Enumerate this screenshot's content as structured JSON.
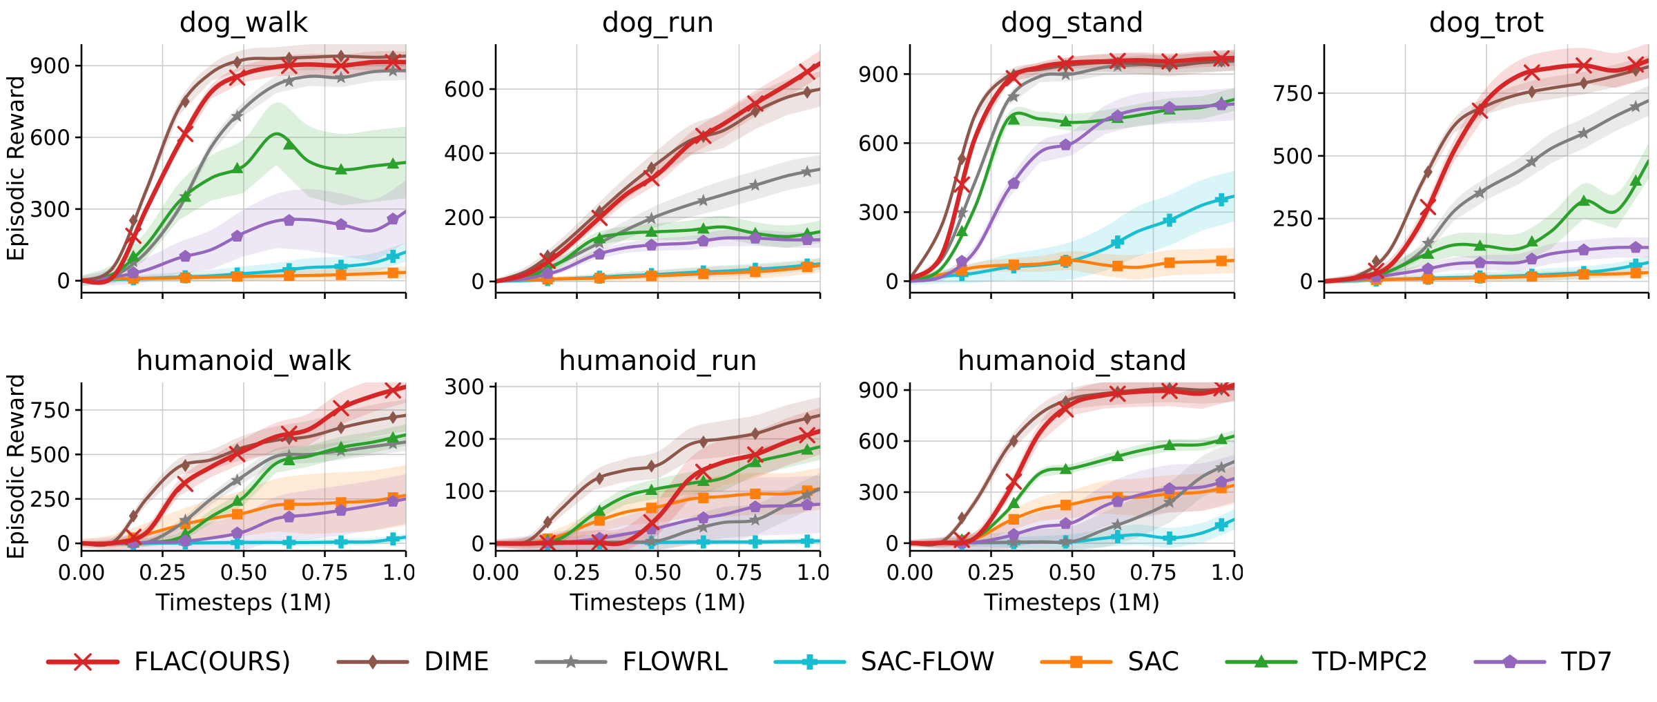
{
  "figure": {
    "ylabel": "Episodic Reward",
    "xlabel": "Timesteps (1M)",
    "x": [
      0,
      0.1,
      0.2,
      0.3,
      0.4,
      0.5,
      0.6,
      0.7,
      0.8,
      0.9,
      1.0
    ],
    "xticks": [
      0,
      0.25,
      0.5,
      0.75,
      1.0
    ],
    "xtick_labels": [
      "0.00",
      "0.25",
      "0.50",
      "0.75",
      "1.00"
    ],
    "marker_x": [
      0.16,
      0.32,
      0.48,
      0.64,
      0.8,
      0.96
    ],
    "grid_color": "#cccccc",
    "spine_color": "#000000"
  },
  "algorithms": [
    {
      "name": "FLAC(OURS)",
      "color": "#d62728",
      "marker": "x",
      "lw": 6.5
    },
    {
      "name": "DIME",
      "color": "#8c564b",
      "marker": "D",
      "lw": 4.5
    },
    {
      "name": "FLOWRL",
      "color": "#7f7f7f",
      "marker": "*",
      "lw": 4.5
    },
    {
      "name": "SAC-FLOW",
      "color": "#17becf",
      "marker": "P",
      "lw": 4.5
    },
    {
      "name": "SAC",
      "color": "#ff7f0e",
      "marker": "s",
      "lw": 4.5
    },
    {
      "name": "TD-MPC2",
      "color": "#2ca02c",
      "marker": "^",
      "lw": 4.5
    },
    {
      "name": "TD7",
      "color": "#9467bd",
      "marker": "p",
      "lw": 4.5
    }
  ],
  "chart_data": [
    {
      "type": "line",
      "title": "dog_walk",
      "ylabel": "Episodic Reward",
      "ylim": [
        -50,
        990
      ],
      "yticks": [
        0,
        300,
        600,
        900
      ],
      "series": [
        {
          "name": "SAC-FLOW",
          "values": [
            0,
            5,
            10,
            15,
            20,
            30,
            40,
            55,
            60,
            75,
            120
          ],
          "band": 40
        },
        {
          "name": "SAC",
          "values": [
            5,
            8,
            10,
            12,
            15,
            18,
            20,
            22,
            25,
            30,
            35
          ],
          "band": 25
        },
        {
          "name": "FLOWRL",
          "values": [
            0,
            20,
            120,
            300,
            560,
            720,
            820,
            855,
            850,
            875,
            880
          ],
          "band": 40
        },
        {
          "name": "TD-MPC2",
          "values": [
            0,
            30,
            150,
            330,
            430,
            480,
            615,
            500,
            465,
            480,
            495
          ],
          "band": 150
        },
        {
          "name": "TD7",
          "values": [
            0,
            15,
            45,
            95,
            130,
            200,
            250,
            255,
            235,
            210,
            290
          ],
          "band": 130
        },
        {
          "name": "DIME",
          "values": [
            0,
            60,
            380,
            720,
            870,
            925,
            930,
            935,
            940,
            935,
            940
          ],
          "band": 55
        },
        {
          "name": "FLAC(OURS)",
          "values": [
            0,
            20,
            300,
            570,
            790,
            865,
            895,
            905,
            900,
            915,
            915
          ],
          "band": 45
        }
      ]
    },
    {
      "type": "line",
      "title": "dog_run",
      "ylabel": "",
      "ylim": [
        -35,
        740
      ],
      "yticks": [
        0,
        200,
        400,
        600
      ],
      "series": [
        {
          "name": "SAC-FLOW",
          "values": [
            0,
            3,
            8,
            12,
            18,
            22,
            28,
            32,
            38,
            45,
            55
          ],
          "band": 18
        },
        {
          "name": "SAC",
          "values": [
            3,
            5,
            8,
            10,
            14,
            18,
            22,
            26,
            30,
            38,
            50
          ],
          "band": 22
        },
        {
          "name": "FLOWRL",
          "values": [
            0,
            20,
            60,
            110,
            160,
            205,
            240,
            270,
            300,
            330,
            350
          ],
          "band": 45
        },
        {
          "name": "TD-MPC2",
          "values": [
            0,
            15,
            60,
            130,
            150,
            155,
            160,
            170,
            150,
            140,
            155
          ],
          "band": 35
        },
        {
          "name": "TD7",
          "values": [
            0,
            10,
            35,
            80,
            105,
            115,
            120,
            135,
            135,
            130,
            130
          ],
          "band": 25
        },
        {
          "name": "DIME",
          "values": [
            0,
            35,
            110,
            200,
            290,
            370,
            440,
            470,
            530,
            575,
            600
          ],
          "band": 55
        },
        {
          "name": "FLAC(OURS)",
          "values": [
            0,
            25,
            90,
            180,
            270,
            335,
            430,
            490,
            555,
            615,
            680
          ],
          "band": 40
        }
      ]
    },
    {
      "type": "line",
      "title": "dog_stand",
      "ylabel": "",
      "ylim": [
        -50,
        1030
      ],
      "yticks": [
        0,
        300,
        600,
        900
      ],
      "series": [
        {
          "name": "SAC-FLOW",
          "values": [
            0,
            20,
            35,
            60,
            70,
            90,
            140,
            215,
            265,
            330,
            370
          ],
          "band": 110
        },
        {
          "name": "SAC",
          "values": [
            15,
            30,
            60,
            70,
            75,
            90,
            70,
            60,
            80,
            85,
            90
          ],
          "band": 55
        },
        {
          "name": "FLOWRL",
          "values": [
            10,
            100,
            430,
            780,
            890,
            900,
            930,
            940,
            945,
            950,
            955
          ],
          "band": 40
        },
        {
          "name": "TD-MPC2",
          "values": [
            0,
            60,
            320,
            700,
            705,
            690,
            700,
            720,
            745,
            755,
            790
          ],
          "band": 50
        },
        {
          "name": "TD7",
          "values": [
            0,
            20,
            130,
            390,
            560,
            600,
            700,
            745,
            755,
            760,
            770
          ],
          "band": 70
        },
        {
          "name": "DIME",
          "values": [
            10,
            250,
            720,
            890,
            920,
            940,
            950,
            945,
            935,
            950,
            960
          ],
          "band": 45
        },
        {
          "name": "FLAC(OURS)",
          "values": [
            10,
            120,
            620,
            870,
            930,
            950,
            955,
            960,
            955,
            965,
            970
          ],
          "band": 35
        }
      ]
    },
    {
      "type": "line",
      "title": "dog_trot",
      "ylabel": "",
      "ylim": [
        -45,
        945
      ],
      "yticks": [
        0,
        250,
        500,
        750
      ],
      "series": [
        {
          "name": "SAC-FLOW",
          "values": [
            0,
            3,
            8,
            12,
            15,
            18,
            22,
            28,
            35,
            50,
            75
          ],
          "band": 25
        },
        {
          "name": "SAC",
          "values": [
            3,
            5,
            8,
            10,
            12,
            15,
            18,
            22,
            28,
            30,
            35
          ],
          "band": 18
        },
        {
          "name": "FLOWRL",
          "values": [
            0,
            10,
            40,
            120,
            280,
            370,
            440,
            530,
            590,
            660,
            720
          ],
          "band": 60
        },
        {
          "name": "TD-MPC2",
          "values": [
            0,
            10,
            40,
            100,
            145,
            140,
            130,
            200,
            320,
            280,
            480
          ],
          "band": 70
        },
        {
          "name": "TD7",
          "values": [
            0,
            8,
            25,
            45,
            70,
            75,
            75,
            110,
            125,
            135,
            135
          ],
          "band": 40
        },
        {
          "name": "DIME",
          "values": [
            0,
            20,
            120,
            390,
            620,
            700,
            745,
            770,
            790,
            820,
            855
          ],
          "band": 45
        },
        {
          "name": "FLAC(OURS)",
          "values": [
            0,
            15,
            60,
            240,
            520,
            720,
            820,
            850,
            860,
            840,
            880
          ],
          "band": 70
        }
      ]
    },
    {
      "type": "line",
      "title": "humanoid_walk",
      "ylabel": "Episodic Reward",
      "ylim": [
        -42,
        905
      ],
      "yticks": [
        0,
        250,
        500,
        750
      ],
      "series": [
        {
          "name": "SAC-FLOW",
          "values": [
            0,
            0,
            0,
            2,
            3,
            5,
            5,
            5,
            8,
            10,
            35
          ],
          "band": 20
        },
        {
          "name": "SAC",
          "values": [
            0,
            5,
            50,
            100,
            140,
            170,
            215,
            220,
            230,
            240,
            270
          ],
          "band": 170
        },
        {
          "name": "FLOWRL",
          "values": [
            0,
            0,
            5,
            100,
            250,
            380,
            490,
            500,
            520,
            545,
            570
          ],
          "band": 50
        },
        {
          "name": "TD-MPC2",
          "values": [
            0,
            0,
            5,
            30,
            150,
            260,
            450,
            490,
            540,
            570,
            610
          ],
          "band": 60
        },
        {
          "name": "TD7",
          "values": [
            0,
            0,
            5,
            10,
            30,
            65,
            140,
            160,
            185,
            215,
            250
          ],
          "band": 140
        },
        {
          "name": "DIME",
          "values": [
            0,
            10,
            250,
            430,
            470,
            540,
            580,
            600,
            650,
            690,
            720
          ],
          "band": 90
        },
        {
          "name": "FLAC(OURS)",
          "values": [
            0,
            2,
            60,
            310,
            430,
            520,
            600,
            640,
            760,
            830,
            880
          ],
          "band": 90
        }
      ]
    },
    {
      "type": "line",
      "title": "humanoid_run",
      "ylabel": "",
      "ylim": [
        -14,
        308
      ],
      "yticks": [
        0,
        100,
        200,
        300
      ],
      "series": [
        {
          "name": "SAC-FLOW",
          "values": [
            0,
            0,
            0,
            1,
            2,
            2,
            3,
            3,
            3,
            4,
            5
          ],
          "band": 5
        },
        {
          "name": "SAC",
          "values": [
            0,
            0,
            15,
            40,
            60,
            70,
            85,
            90,
            95,
            95,
            105
          ],
          "band": 40
        },
        {
          "name": "FLOWRL",
          "values": [
            0,
            0,
            0,
            2,
            3,
            5,
            25,
            40,
            45,
            75,
            105
          ],
          "band": 30
        },
        {
          "name": "TD-MPC2",
          "values": [
            0,
            0,
            10,
            55,
            90,
            105,
            115,
            125,
            155,
            170,
            185
          ],
          "band": 25
        },
        {
          "name": "TD7",
          "values": [
            0,
            0,
            2,
            8,
            18,
            30,
            45,
            55,
            70,
            72,
            75
          ],
          "band": 55
        },
        {
          "name": "DIME",
          "values": [
            0,
            5,
            65,
            120,
            140,
            150,
            190,
            200,
            210,
            230,
            245
          ],
          "band": 35
        },
        {
          "name": "FLAC(OURS)",
          "values": [
            0,
            0,
            2,
            2,
            3,
            50,
            125,
            155,
            170,
            195,
            215
          ],
          "band": 45
        }
      ]
    },
    {
      "type": "line",
      "title": "humanoid_stand",
      "ylabel": "",
      "ylim": [
        -45,
        945
      ],
      "yticks": [
        0,
        300,
        600,
        900
      ],
      "series": [
        {
          "name": "SAC-FLOW",
          "values": [
            0,
            0,
            2,
            3,
            5,
            8,
            30,
            50,
            30,
            60,
            140
          ],
          "band": 60
        },
        {
          "name": "SAC",
          "values": [
            0,
            3,
            25,
            125,
            200,
            230,
            270,
            270,
            290,
            300,
            340
          ],
          "band": 110
        },
        {
          "name": "FLOWRL",
          "values": [
            0,
            0,
            3,
            5,
            8,
            10,
            80,
            150,
            240,
            390,
            480
          ],
          "band": 120
        },
        {
          "name": "TD-MPC2",
          "values": [
            0,
            5,
            30,
            190,
            410,
            440,
            490,
            540,
            575,
            580,
            630
          ],
          "band": 35
        },
        {
          "name": "TD7",
          "values": [
            0,
            0,
            5,
            40,
            95,
            120,
            220,
            280,
            320,
            330,
            380
          ],
          "band": 140
        },
        {
          "name": "DIME",
          "values": [
            0,
            10,
            240,
            560,
            760,
            850,
            880,
            900,
            910,
            900,
            910
          ],
          "band": 80
        },
        {
          "name": "FLAC(OURS)",
          "values": [
            0,
            2,
            30,
            290,
            650,
            820,
            870,
            890,
            895,
            880,
            930
          ],
          "band": 90
        }
      ]
    }
  ]
}
